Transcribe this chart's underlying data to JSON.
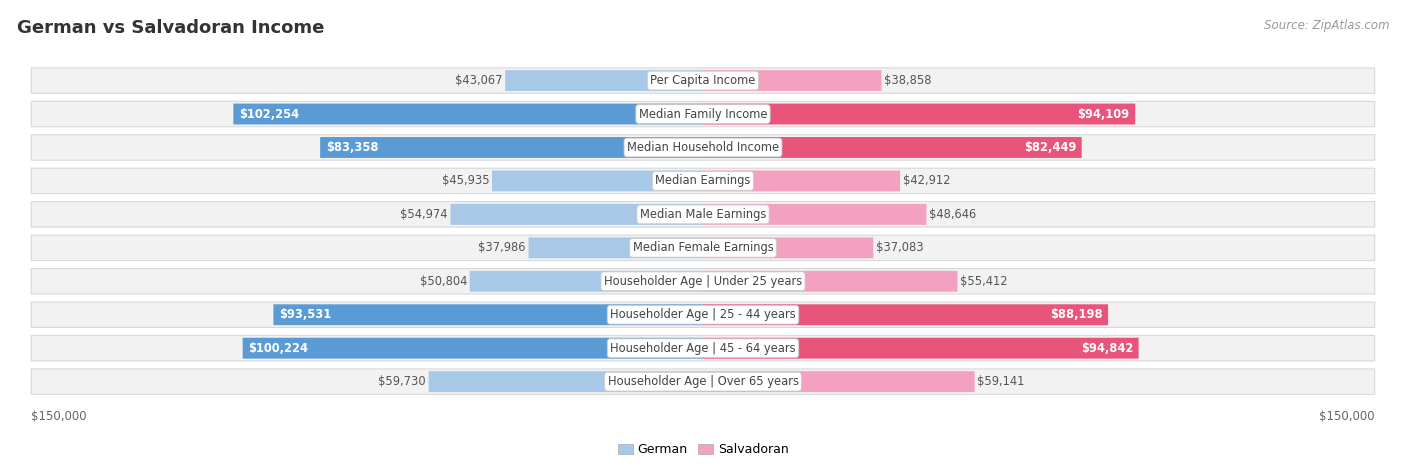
{
  "title": "German vs Salvadoran Income",
  "source": "Source: ZipAtlas.com",
  "categories": [
    "Per Capita Income",
    "Median Family Income",
    "Median Household Income",
    "Median Earnings",
    "Median Male Earnings",
    "Median Female Earnings",
    "Householder Age | Under 25 years",
    "Householder Age | 25 - 44 years",
    "Householder Age | 45 - 64 years",
    "Householder Age | Over 65 years"
  ],
  "german_values": [
    43067,
    102254,
    83358,
    45935,
    54974,
    37986,
    50804,
    93531,
    100224,
    59730
  ],
  "salvadoran_values": [
    38858,
    94109,
    82449,
    42912,
    48646,
    37083,
    55412,
    88198,
    94842,
    59141
  ],
  "german_color_light": "#a8c8e8",
  "german_color_dark": "#5b9bd5",
  "salvadoran_color_light": "#f4a0c0",
  "salvadoran_color_dark": "#e8547a",
  "max_value": 150000,
  "xlabel_left": "$150,000",
  "xlabel_right": "$150,000",
  "legend_german": "German",
  "legend_salvadoran": "Salvadoran",
  "row_bg_color": "#f2f2f2",
  "title_fontsize": 14,
  "label_fontsize": 8.5,
  "value_fontsize": 8.5,
  "bg_color": "#ffffff",
  "dark_threshold": 70000
}
